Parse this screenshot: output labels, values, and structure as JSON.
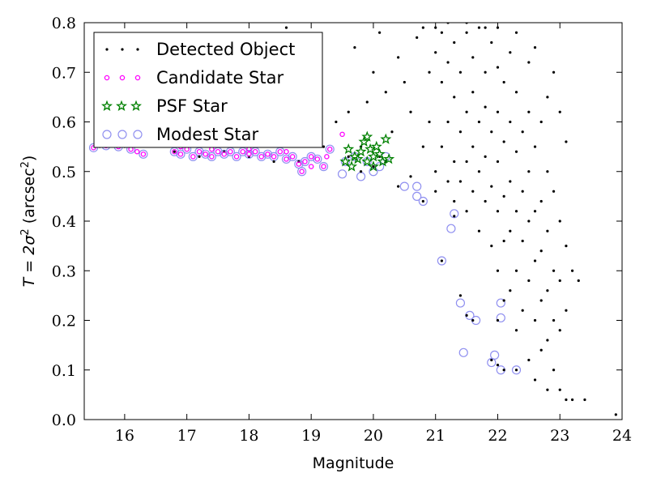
{
  "chart_data": {
    "type": "scatter",
    "title": "",
    "xlabel": "Magnitude",
    "ylabel": {
      "prefix": "T = 2σ",
      "superscript": "2",
      "unit_open": " (arcsec",
      "unit_super": "2",
      "unit_close": ")"
    },
    "xlim": [
      15.35,
      24.0
    ],
    "ylim": [
      0.0,
      0.8
    ],
    "xticks": [
      16,
      17,
      18,
      19,
      20,
      21,
      22,
      23,
      24
    ],
    "yticks": [
      0.0,
      0.1,
      0.2,
      0.3,
      0.4,
      0.5,
      0.6,
      0.7,
      0.8
    ],
    "grid": false,
    "legend": {
      "placement": "top-left",
      "entries": [
        "Detected Object",
        "Candidate Star",
        "PSF Star",
        "Modest Star"
      ]
    },
    "colors": {
      "detected": "#000000",
      "candidate": "#ff00ff",
      "psf": "#008000",
      "modest": "#9090f0"
    },
    "series": [
      {
        "name": "Detected Object",
        "marker": "dot",
        "points": [
          [
            19.6,
            0.53
          ],
          [
            19.8,
            0.55
          ],
          [
            20.2,
            0.52
          ],
          [
            20.4,
            0.47
          ],
          [
            20.6,
            0.49
          ],
          [
            20.8,
            0.44
          ],
          [
            21.1,
            0.32
          ],
          [
            21.3,
            0.41
          ],
          [
            21.4,
            0.25
          ],
          [
            21.5,
            0.21
          ],
          [
            21.6,
            0.2
          ],
          [
            21.9,
            0.12
          ],
          [
            22.0,
            0.11
          ],
          [
            22.1,
            0.1
          ],
          [
            22.3,
            0.1
          ],
          [
            22.0,
            0.2
          ],
          [
            22.1,
            0.24
          ],
          [
            19.2,
            0.55
          ],
          [
            19.4,
            0.6
          ],
          [
            19.6,
            0.62
          ],
          [
            19.7,
            0.75
          ],
          [
            19.9,
            0.64
          ],
          [
            20.0,
            0.7
          ],
          [
            20.1,
            0.78
          ],
          [
            20.2,
            0.66
          ],
          [
            20.3,
            0.58
          ],
          [
            20.4,
            0.73
          ],
          [
            20.5,
            0.68
          ],
          [
            20.6,
            0.62
          ],
          [
            20.7,
            0.77
          ],
          [
            20.8,
            0.55
          ],
          [
            20.9,
            0.7
          ],
          [
            20.9,
            0.6
          ],
          [
            21.0,
            0.74
          ],
          [
            21.0,
            0.5
          ],
          [
            21.0,
            0.46
          ],
          [
            21.1,
            0.78
          ],
          [
            21.1,
            0.68
          ],
          [
            21.1,
            0.55
          ],
          [
            21.2,
            0.72
          ],
          [
            21.2,
            0.6
          ],
          [
            21.2,
            0.48
          ],
          [
            21.3,
            0.76
          ],
          [
            21.3,
            0.65
          ],
          [
            21.3,
            0.52
          ],
          [
            21.3,
            0.44
          ],
          [
            21.4,
            0.7
          ],
          [
            21.4,
            0.58
          ],
          [
            21.4,
            0.48
          ],
          [
            21.5,
            0.78
          ],
          [
            21.5,
            0.62
          ],
          [
            21.5,
            0.52
          ],
          [
            21.5,
            0.42
          ],
          [
            21.6,
            0.73
          ],
          [
            21.6,
            0.66
          ],
          [
            21.6,
            0.55
          ],
          [
            21.6,
            0.46
          ],
          [
            21.7,
            0.79
          ],
          [
            21.7,
            0.6
          ],
          [
            21.7,
            0.5
          ],
          [
            21.7,
            0.38
          ],
          [
            21.8,
            0.7
          ],
          [
            21.8,
            0.63
          ],
          [
            21.8,
            0.53
          ],
          [
            21.8,
            0.44
          ],
          [
            21.9,
            0.76
          ],
          [
            21.9,
            0.58
          ],
          [
            21.9,
            0.47
          ],
          [
            21.9,
            0.35
          ],
          [
            22.0,
            0.71
          ],
          [
            22.0,
            0.62
          ],
          [
            22.0,
            0.52
          ],
          [
            22.0,
            0.42
          ],
          [
            22.0,
            0.3
          ],
          [
            22.1,
            0.68
          ],
          [
            22.1,
            0.56
          ],
          [
            22.1,
            0.45
          ],
          [
            22.1,
            0.36
          ],
          [
            22.2,
            0.74
          ],
          [
            22.2,
            0.6
          ],
          [
            22.2,
            0.48
          ],
          [
            22.2,
            0.38
          ],
          [
            22.2,
            0.26
          ],
          [
            22.3,
            0.66
          ],
          [
            22.3,
            0.54
          ],
          [
            22.3,
            0.42
          ],
          [
            22.3,
            0.3
          ],
          [
            22.3,
            0.18
          ],
          [
            22.4,
            0.58
          ],
          [
            22.4,
            0.46
          ],
          [
            22.4,
            0.36
          ],
          [
            22.4,
            0.22
          ],
          [
            22.5,
            0.62
          ],
          [
            22.5,
            0.5
          ],
          [
            22.5,
            0.4
          ],
          [
            22.5,
            0.28
          ],
          [
            22.5,
            0.12
          ],
          [
            22.6,
            0.55
          ],
          [
            22.6,
            0.42
          ],
          [
            22.6,
            0.32
          ],
          [
            22.6,
            0.2
          ],
          [
            22.6,
            0.08
          ],
          [
            22.7,
            0.6
          ],
          [
            22.7,
            0.44
          ],
          [
            22.7,
            0.34
          ],
          [
            22.7,
            0.24
          ],
          [
            22.7,
            0.14
          ],
          [
            22.8,
            0.5
          ],
          [
            22.8,
            0.38
          ],
          [
            22.8,
            0.26
          ],
          [
            22.8,
            0.16
          ],
          [
            22.8,
            0.06
          ],
          [
            22.9,
            0.46
          ],
          [
            22.9,
            0.3
          ],
          [
            22.9,
            0.2
          ],
          [
            22.9,
            0.1
          ],
          [
            23.0,
            0.4
          ],
          [
            23.0,
            0.28
          ],
          [
            23.0,
            0.18
          ],
          [
            23.0,
            0.06
          ],
          [
            23.1,
            0.35
          ],
          [
            23.1,
            0.22
          ],
          [
            23.1,
            0.04
          ],
          [
            23.2,
            0.3
          ],
          [
            23.2,
            0.04
          ],
          [
            23.3,
            0.28
          ],
          [
            23.4,
            0.04
          ],
          [
            23.9,
            0.01
          ],
          [
            20.8,
            0.79
          ],
          [
            21.0,
            0.79
          ],
          [
            21.2,
            0.8
          ],
          [
            21.5,
            0.8
          ],
          [
            21.8,
            0.79
          ],
          [
            22.0,
            0.79
          ],
          [
            22.3,
            0.78
          ],
          [
            22.6,
            0.75
          ],
          [
            22.9,
            0.7
          ],
          [
            23.0,
            0.62
          ],
          [
            23.1,
            0.56
          ],
          [
            22.8,
            0.65
          ],
          [
            22.5,
            0.72
          ],
          [
            19.8,
            0.5
          ],
          [
            20.0,
            0.51
          ],
          [
            20.1,
            0.53
          ],
          [
            18.8,
            0.52
          ],
          [
            18.4,
            0.52
          ],
          [
            18.0,
            0.53
          ],
          [
            17.6,
            0.54
          ],
          [
            17.2,
            0.53
          ],
          [
            16.8,
            0.54
          ],
          [
            16.0,
            0.55
          ],
          [
            15.6,
            0.55
          ],
          [
            18.6,
            0.79
          ]
        ]
      },
      {
        "name": "Candidate Star",
        "marker": "circle",
        "points": [
          [
            15.5,
            0.548
          ],
          [
            15.7,
            0.552
          ],
          [
            15.9,
            0.55
          ],
          [
            16.1,
            0.545
          ],
          [
            16.3,
            0.535
          ],
          [
            16.8,
            0.54
          ],
          [
            16.9,
            0.535
          ],
          [
            17.0,
            0.545
          ],
          [
            17.1,
            0.53
          ],
          [
            17.2,
            0.54
          ],
          [
            17.3,
            0.535
          ],
          [
            17.4,
            0.53
          ],
          [
            17.5,
            0.54
          ],
          [
            17.6,
            0.535
          ],
          [
            17.7,
            0.54
          ],
          [
            17.8,
            0.53
          ],
          [
            17.9,
            0.54
          ],
          [
            18.0,
            0.535
          ],
          [
            18.1,
            0.54
          ],
          [
            18.2,
            0.53
          ],
          [
            18.3,
            0.535
          ],
          [
            18.4,
            0.53
          ],
          [
            18.5,
            0.54
          ],
          [
            18.6,
            0.525
          ],
          [
            18.7,
            0.53
          ],
          [
            18.8,
            0.515
          ],
          [
            18.85,
            0.5
          ],
          [
            18.9,
            0.52
          ],
          [
            19.0,
            0.53
          ],
          [
            19.1,
            0.525
          ],
          [
            19.2,
            0.51
          ],
          [
            19.25,
            0.53
          ],
          [
            19.3,
            0.545
          ],
          [
            19.5,
            0.575
          ],
          [
            16.2,
            0.54
          ],
          [
            16.9,
            0.55
          ],
          [
            17.4,
            0.545
          ],
          [
            18.0,
            0.545
          ],
          [
            18.6,
            0.54
          ],
          [
            19.0,
            0.51
          ]
        ]
      },
      {
        "name": "PSF Star",
        "marker": "star",
        "points": [
          [
            19.55,
            0.52
          ],
          [
            19.6,
            0.545
          ],
          [
            19.65,
            0.51
          ],
          [
            19.7,
            0.53
          ],
          [
            19.75,
            0.525
          ],
          [
            19.8,
            0.54
          ],
          [
            19.85,
            0.56
          ],
          [
            19.9,
            0.52
          ],
          [
            19.9,
            0.57
          ],
          [
            19.95,
            0.545
          ],
          [
            20.0,
            0.53
          ],
          [
            20.0,
            0.51
          ],
          [
            20.05,
            0.55
          ],
          [
            20.1,
            0.535
          ],
          [
            20.15,
            0.52
          ],
          [
            20.2,
            0.565
          ],
          [
            20.25,
            0.525
          ]
        ]
      },
      {
        "name": "Modest Star",
        "marker": "ring",
        "points": [
          [
            15.5,
            0.548
          ],
          [
            15.7,
            0.552
          ],
          [
            15.9,
            0.55
          ],
          [
            16.1,
            0.545
          ],
          [
            16.3,
            0.535
          ],
          [
            16.8,
            0.54
          ],
          [
            16.9,
            0.535
          ],
          [
            17.0,
            0.545
          ],
          [
            17.1,
            0.53
          ],
          [
            17.2,
            0.54
          ],
          [
            17.3,
            0.535
          ],
          [
            17.4,
            0.53
          ],
          [
            17.5,
            0.54
          ],
          [
            17.6,
            0.535
          ],
          [
            17.7,
            0.54
          ],
          [
            17.8,
            0.53
          ],
          [
            17.9,
            0.54
          ],
          [
            18.0,
            0.535
          ],
          [
            18.1,
            0.54
          ],
          [
            18.2,
            0.53
          ],
          [
            18.3,
            0.535
          ],
          [
            18.4,
            0.53
          ],
          [
            18.5,
            0.54
          ],
          [
            18.6,
            0.525
          ],
          [
            18.7,
            0.53
          ],
          [
            18.8,
            0.515
          ],
          [
            18.85,
            0.5
          ],
          [
            18.9,
            0.52
          ],
          [
            19.0,
            0.53
          ],
          [
            19.1,
            0.525
          ],
          [
            19.2,
            0.51
          ],
          [
            19.3,
            0.545
          ],
          [
            19.5,
            0.495
          ],
          [
            19.55,
            0.52
          ],
          [
            19.7,
            0.53
          ],
          [
            19.8,
            0.49
          ],
          [
            19.9,
            0.52
          ],
          [
            20.0,
            0.5
          ],
          [
            20.1,
            0.51
          ],
          [
            20.2,
            0.53
          ],
          [
            20.5,
            0.47
          ],
          [
            20.7,
            0.47
          ],
          [
            20.7,
            0.45
          ],
          [
            20.8,
            0.44
          ],
          [
            21.1,
            0.32
          ],
          [
            21.25,
            0.385
          ],
          [
            21.3,
            0.415
          ],
          [
            21.4,
            0.235
          ],
          [
            21.45,
            0.135
          ],
          [
            21.55,
            0.21
          ],
          [
            21.65,
            0.2
          ],
          [
            21.9,
            0.115
          ],
          [
            21.95,
            0.13
          ],
          [
            22.05,
            0.205
          ],
          [
            22.05,
            0.235
          ],
          [
            22.05,
            0.1
          ],
          [
            22.3,
            0.1
          ]
        ]
      }
    ]
  }
}
